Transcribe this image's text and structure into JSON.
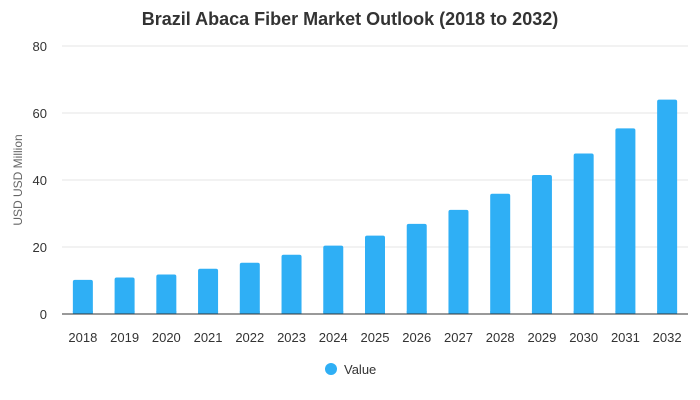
{
  "chart_data": {
    "type": "bar",
    "title": "Brazil Abaca Fiber Market Outlook (2018 to 2032)",
    "ylabel": "USD USD Million",
    "xlabel": "",
    "categories": [
      "2018",
      "2019",
      "2020",
      "2021",
      "2022",
      "2023",
      "2024",
      "2025",
      "2026",
      "2027",
      "2028",
      "2029",
      "2030",
      "2031",
      "2032"
    ],
    "series": [
      {
        "name": "Value",
        "values": [
          10.2,
          10.9,
          11.8,
          13.5,
          15.3,
          17.7,
          20.4,
          23.4,
          26.9,
          31.1,
          35.9,
          41.5,
          47.9,
          55.4,
          64.0
        ]
      }
    ],
    "ylim": [
      0,
      80
    ],
    "yticks": [
      "0",
      "20",
      "40",
      "60",
      "80"
    ],
    "grid": true,
    "legend_position": "bottom"
  },
  "colors": {
    "bar": "#2FAFF5",
    "title": "#333333",
    "grid": "#e6e6e6"
  }
}
